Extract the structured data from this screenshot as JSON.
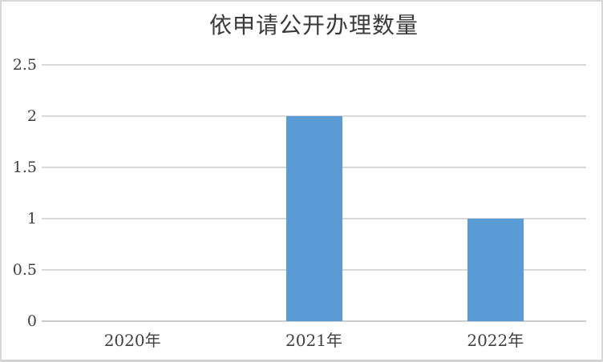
{
  "frame": {
    "background": "#FFFFFF",
    "border_color": "#D7D7D7"
  },
  "chart_data": {
    "type": "bar",
    "title": "依申请公开办理数量",
    "categories": [
      "2020年",
      "2021年",
      "2022年"
    ],
    "values": [
      0,
      2,
      1
    ],
    "xlabel": "",
    "ylabel": "",
    "ylim": [
      0,
      2.5
    ],
    "yticks": [
      0,
      0.5,
      1,
      1.5,
      2,
      2.5
    ],
    "ytick_labels": [
      "0",
      "0.5",
      "1",
      "1.5",
      "2",
      "2.5"
    ],
    "grid": true,
    "legend": false,
    "bar_color": "#5B9BD5",
    "gridline_color": "#D9D9D9",
    "axis_line_color": "#CCCCCC",
    "tick_text_color": "#404040",
    "title_color": "#3A3A3A"
  }
}
